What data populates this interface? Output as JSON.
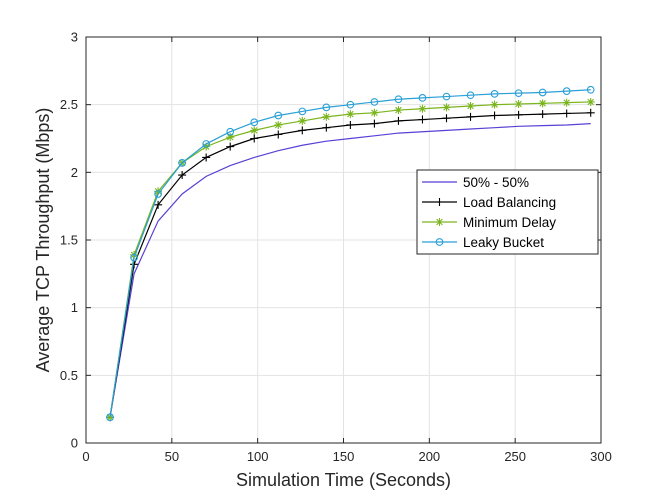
{
  "chart_data": {
    "type": "line",
    "xlabel": "Simulation Time (Seconds)",
    "ylabel": "Average TCP Throughput (Mbps)",
    "xlim": [
      0,
      300
    ],
    "ylim": [
      0,
      3
    ],
    "xticks": [
      0,
      50,
      100,
      150,
      200,
      250,
      300
    ],
    "yticks": [
      0,
      0.5,
      1,
      1.5,
      2,
      2.5,
      3
    ],
    "xtick_labels": [
      "0",
      "50",
      "100",
      "150",
      "200",
      "250",
      "300"
    ],
    "ytick_labels": [
      "0",
      "0.5",
      "1",
      "1.5",
      "2",
      "2.5",
      "3"
    ],
    "grid": true,
    "legend_position": "center-right",
    "x": [
      14,
      28,
      42,
      56,
      70,
      84,
      98,
      112,
      126,
      140,
      154,
      168,
      182,
      196,
      210,
      224,
      238,
      252,
      266,
      280,
      294
    ],
    "series": [
      {
        "name": "50% - 50%",
        "color": "#5a3fd6",
        "marker": "none",
        "values": [
          0.19,
          1.25,
          1.64,
          1.84,
          1.97,
          2.05,
          2.11,
          2.16,
          2.2,
          2.23,
          2.25,
          2.27,
          2.29,
          2.3,
          2.31,
          2.32,
          2.33,
          2.34,
          2.345,
          2.35,
          2.36
        ]
      },
      {
        "name": "Load Balancing",
        "color": "#000000",
        "marker": "plus",
        "values": [
          0.19,
          1.32,
          1.76,
          1.98,
          2.11,
          2.19,
          2.25,
          2.28,
          2.31,
          2.33,
          2.35,
          2.36,
          2.38,
          2.39,
          2.4,
          2.41,
          2.42,
          2.425,
          2.43,
          2.435,
          2.44
        ]
      },
      {
        "name": "Minimum Delay",
        "color": "#7ab51d",
        "marker": "asterisk",
        "values": [
          0.19,
          1.39,
          1.86,
          2.07,
          2.19,
          2.26,
          2.31,
          2.35,
          2.38,
          2.41,
          2.43,
          2.44,
          2.46,
          2.47,
          2.48,
          2.49,
          2.5,
          2.505,
          2.51,
          2.515,
          2.52
        ]
      },
      {
        "name": "Leaky Bucket",
        "color": "#2a9fd6",
        "marker": "circle",
        "values": [
          0.19,
          1.37,
          1.84,
          2.07,
          2.21,
          2.3,
          2.37,
          2.42,
          2.45,
          2.48,
          2.5,
          2.52,
          2.54,
          2.55,
          2.56,
          2.57,
          2.58,
          2.585,
          2.59,
          2.6,
          2.61
        ]
      }
    ]
  }
}
